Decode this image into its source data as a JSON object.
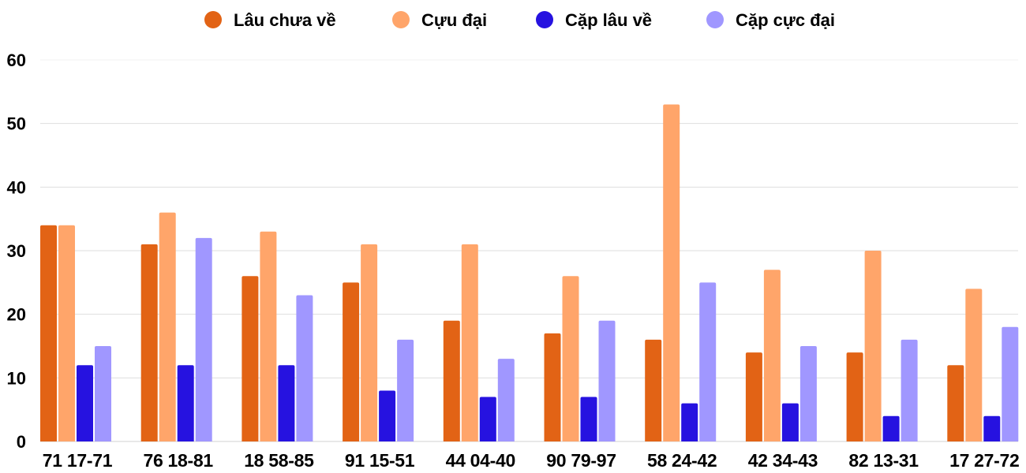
{
  "chart_data": {
    "type": "bar",
    "title": "",
    "xlabel": "",
    "ylabel": "",
    "ylim": [
      0,
      60
    ],
    "yticks": [
      0,
      10,
      20,
      30,
      40,
      50,
      60
    ],
    "grid": true,
    "legend_position": "top",
    "categories": [
      "71 17-71",
      "76 18-81",
      "18 58-85",
      "91 15-51",
      "44 04-40",
      "90 79-97",
      "58 24-42",
      "42 34-43",
      "82 13-31",
      "17 27-72"
    ],
    "series": [
      {
        "name": "Lâu chưa về",
        "color": "#E26315",
        "values": [
          34,
          31,
          26,
          25,
          19,
          17,
          16,
          14,
          14,
          12
        ]
      },
      {
        "name": "Cựu đại",
        "color": "#FFA56A",
        "values": [
          34,
          36,
          33,
          31,
          31,
          26,
          53,
          27,
          30,
          24
        ]
      },
      {
        "name": "Cặp lâu về",
        "color": "#2612E0",
        "values": [
          12,
          12,
          12,
          8,
          7,
          7,
          6,
          6,
          4,
          4
        ]
      },
      {
        "name": "Cặp cực đại",
        "color": "#A097FF",
        "values": [
          15,
          32,
          23,
          16,
          13,
          19,
          25,
          15,
          16,
          18
        ]
      }
    ]
  }
}
